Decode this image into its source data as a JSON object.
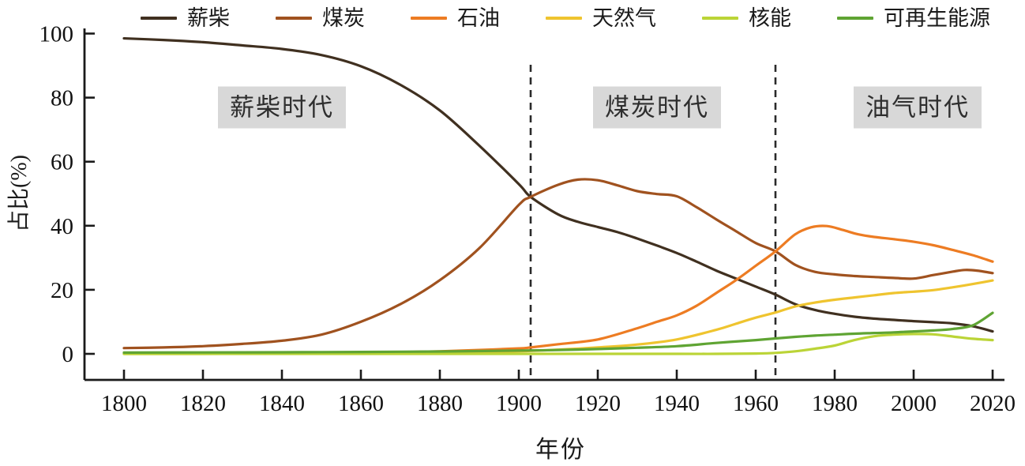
{
  "chart_data": {
    "type": "line",
    "title": "",
    "xlabel": "年份",
    "ylabel": "占比(%)",
    "x_range": [
      1800,
      2020
    ],
    "y_range": [
      0,
      100
    ],
    "x_ticks": [
      1800,
      1820,
      1840,
      1860,
      1880,
      1900,
      1920,
      1940,
      1960,
      1980,
      2000,
      2020
    ],
    "y_ticks": [
      0,
      20,
      40,
      60,
      80,
      100
    ],
    "grid": false,
    "legend_position": "top",
    "series": [
      {
        "name": "薪柴",
        "color": "#403020",
        "points": [
          [
            1800,
            98.5
          ],
          [
            1810,
            98
          ],
          [
            1820,
            97.3
          ],
          [
            1830,
            96.3
          ],
          [
            1840,
            95.2
          ],
          [
            1850,
            93.3
          ],
          [
            1860,
            89.8
          ],
          [
            1870,
            84
          ],
          [
            1880,
            76
          ],
          [
            1890,
            65
          ],
          [
            1900,
            53
          ],
          [
            1903,
            49
          ],
          [
            1910,
            43.5
          ],
          [
            1915,
            41.2
          ],
          [
            1920,
            39.6
          ],
          [
            1925,
            38
          ],
          [
            1930,
            36
          ],
          [
            1935,
            33.8
          ],
          [
            1940,
            31.5
          ],
          [
            1945,
            28.8
          ],
          [
            1950,
            26
          ],
          [
            1955,
            23.5
          ],
          [
            1960,
            21
          ],
          [
            1965,
            18.5
          ],
          [
            1970,
            15.5
          ],
          [
            1975,
            13.7
          ],
          [
            1980,
            12.5
          ],
          [
            1985,
            11.6
          ],
          [
            1990,
            11
          ],
          [
            1995,
            10.6
          ],
          [
            2000,
            10.2
          ],
          [
            2005,
            9.9
          ],
          [
            2010,
            9.5
          ],
          [
            2015,
            8.6
          ],
          [
            2020,
            7
          ]
        ]
      },
      {
        "name": "煤炭",
        "color": "#A0521F",
        "points": [
          [
            1800,
            1.8
          ],
          [
            1810,
            2
          ],
          [
            1820,
            2.4
          ],
          [
            1830,
            3.1
          ],
          [
            1840,
            4.1
          ],
          [
            1850,
            6
          ],
          [
            1860,
            10
          ],
          [
            1870,
            15.5
          ],
          [
            1880,
            23
          ],
          [
            1890,
            33
          ],
          [
            1900,
            46.5
          ],
          [
            1903,
            49
          ],
          [
            1910,
            52.8
          ],
          [
            1915,
            54.4
          ],
          [
            1920,
            54.2
          ],
          [
            1925,
            52.6
          ],
          [
            1930,
            50.8
          ],
          [
            1935,
            49.9
          ],
          [
            1940,
            49.2
          ],
          [
            1945,
            45.8
          ],
          [
            1950,
            42
          ],
          [
            1955,
            38.3
          ],
          [
            1960,
            34.6
          ],
          [
            1965,
            32
          ],
          [
            1970,
            27.8
          ],
          [
            1975,
            25.6
          ],
          [
            1980,
            24.8
          ],
          [
            1985,
            24.3
          ],
          [
            1990,
            24
          ],
          [
            1995,
            23.7
          ],
          [
            2000,
            23.5
          ],
          [
            2005,
            24.6
          ],
          [
            2010,
            25.7
          ],
          [
            2013,
            26.2
          ],
          [
            2016,
            26
          ],
          [
            2020,
            25.2
          ]
        ]
      },
      {
        "name": "石油",
        "color": "#ED7C23",
        "points": [
          [
            1800,
            0.1
          ],
          [
            1820,
            0.1
          ],
          [
            1840,
            0.2
          ],
          [
            1860,
            0.3
          ],
          [
            1870,
            0.5
          ],
          [
            1880,
            0.8
          ],
          [
            1890,
            1.2
          ],
          [
            1900,
            1.7
          ],
          [
            1903,
            2
          ],
          [
            1910,
            3
          ],
          [
            1920,
            4.5
          ],
          [
            1930,
            8
          ],
          [
            1935,
            10
          ],
          [
            1940,
            12
          ],
          [
            1945,
            15
          ],
          [
            1950,
            19
          ],
          [
            1955,
            23
          ],
          [
            1960,
            27.5
          ],
          [
            1965,
            32
          ],
          [
            1970,
            37.3
          ],
          [
            1974,
            39.5
          ],
          [
            1978,
            39.9
          ],
          [
            1982,
            38.7
          ],
          [
            1986,
            37.3
          ],
          [
            1990,
            36.5
          ],
          [
            1995,
            35.8
          ],
          [
            2000,
            35
          ],
          [
            2005,
            33.9
          ],
          [
            2010,
            32.4
          ],
          [
            2015,
            30.8
          ],
          [
            2020,
            28.8
          ]
        ]
      },
      {
        "name": "天然气",
        "color": "#EFC42F",
        "points": [
          [
            1800,
            0
          ],
          [
            1820,
            0
          ],
          [
            1840,
            0.1
          ],
          [
            1860,
            0.2
          ],
          [
            1880,
            0.4
          ],
          [
            1890,
            0.6
          ],
          [
            1900,
            0.8
          ],
          [
            1910,
            1.3
          ],
          [
            1920,
            2
          ],
          [
            1930,
            2.9
          ],
          [
            1940,
            4.5
          ],
          [
            1950,
            7.5
          ],
          [
            1955,
            9.4
          ],
          [
            1960,
            11.3
          ],
          [
            1965,
            12.9
          ],
          [
            1970,
            14.8
          ],
          [
            1975,
            16
          ],
          [
            1980,
            16.9
          ],
          [
            1985,
            17.6
          ],
          [
            1990,
            18.3
          ],
          [
            1995,
            19
          ],
          [
            2000,
            19.4
          ],
          [
            2005,
            19.9
          ],
          [
            2010,
            20.8
          ],
          [
            2015,
            21.8
          ],
          [
            2020,
            22.9
          ]
        ]
      },
      {
        "name": "核能",
        "color": "#BBD437",
        "points": [
          [
            1800,
            0
          ],
          [
            1850,
            0
          ],
          [
            1900,
            0
          ],
          [
            1940,
            0
          ],
          [
            1950,
            0
          ],
          [
            1960,
            0.1
          ],
          [
            1965,
            0.3
          ],
          [
            1970,
            0.8
          ],
          [
            1975,
            1.6
          ],
          [
            1980,
            2.6
          ],
          [
            1985,
            4.3
          ],
          [
            1990,
            5.5
          ],
          [
            1995,
            6
          ],
          [
            2000,
            6.2
          ],
          [
            2005,
            6.1
          ],
          [
            2010,
            5.4
          ],
          [
            2015,
            4.7
          ],
          [
            2020,
            4.3
          ]
        ]
      },
      {
        "name": "可再生能源",
        "color": "#5FA433",
        "points": [
          [
            1800,
            0.4
          ],
          [
            1820,
            0.45
          ],
          [
            1840,
            0.5
          ],
          [
            1860,
            0.6
          ],
          [
            1880,
            0.75
          ],
          [
            1900,
            1
          ],
          [
            1910,
            1.2
          ],
          [
            1920,
            1.5
          ],
          [
            1930,
            1.9
          ],
          [
            1940,
            2.4
          ],
          [
            1950,
            3.4
          ],
          [
            1960,
            4.3
          ],
          [
            1965,
            4.8
          ],
          [
            1970,
            5.3
          ],
          [
            1975,
            5.7
          ],
          [
            1980,
            6
          ],
          [
            1985,
            6.3
          ],
          [
            1990,
            6.5
          ],
          [
            1995,
            6.7
          ],
          [
            2000,
            7
          ],
          [
            2005,
            7.3
          ],
          [
            2010,
            7.8
          ],
          [
            2015,
            8.9
          ],
          [
            2020,
            12.8
          ]
        ]
      }
    ],
    "era_annotations": [
      {
        "label": "薪柴时代",
        "center_year": 1840,
        "center_value": 77
      },
      {
        "label": "煤炭时代",
        "center_year": 1935,
        "center_value": 77
      },
      {
        "label": "油气时代",
        "center_year": 2001,
        "center_value": 77
      }
    ],
    "divider_years": [
      1903,
      1965
    ]
  },
  "colors": {
    "axis": "#1a1a1a",
    "tick_label": "#111111",
    "divider": "#2a2a2a",
    "era_box_bg": "#d8d8d8"
  }
}
